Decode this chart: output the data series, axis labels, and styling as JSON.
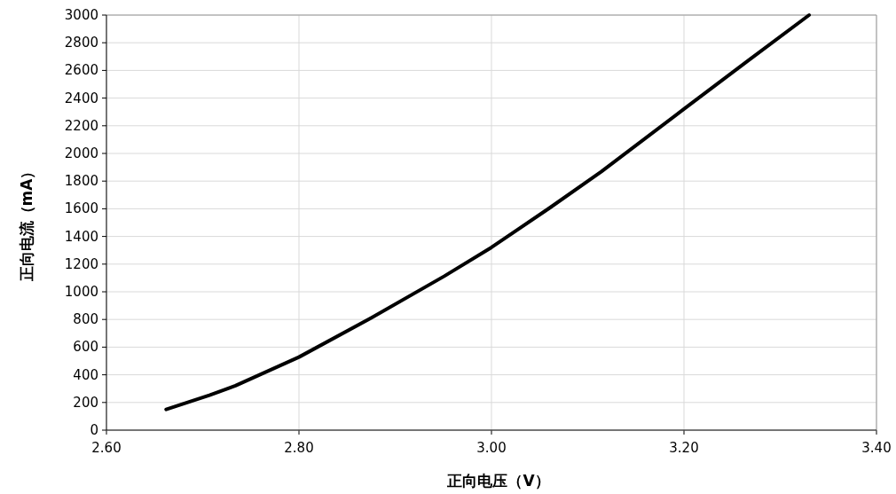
{
  "chart_data": {
    "type": "line",
    "xlabel": "正向电压（V）",
    "ylabel": "正向电流（mA）",
    "x": [
      2.662,
      2.707,
      2.734,
      2.8,
      2.875,
      2.951,
      3.0,
      3.06,
      3.114,
      3.2,
      3.266,
      3.33
    ],
    "values": [
      150,
      253,
      321,
      528,
      811,
      1113,
      1321,
      1604,
      1868,
      2321,
      2668,
      3000
    ],
    "color": "#000000",
    "xlim": [
      2.6,
      3.4
    ],
    "xticks": [
      {
        "value": 2.6,
        "label": "2.60"
      },
      {
        "value": 2.8,
        "label": "2.80"
      },
      {
        "value": 3.0,
        "label": "3.00"
      },
      {
        "value": 3.2,
        "label": "3.20"
      },
      {
        "value": 3.4,
        "label": "3.40"
      }
    ],
    "ylim": [
      0,
      3000
    ],
    "yticks": [
      0,
      200,
      400,
      600,
      800,
      1000,
      1200,
      1400,
      1600,
      1800,
      2000,
      2200,
      2400,
      2600,
      2800,
      3000
    ],
    "grid": true
  }
}
